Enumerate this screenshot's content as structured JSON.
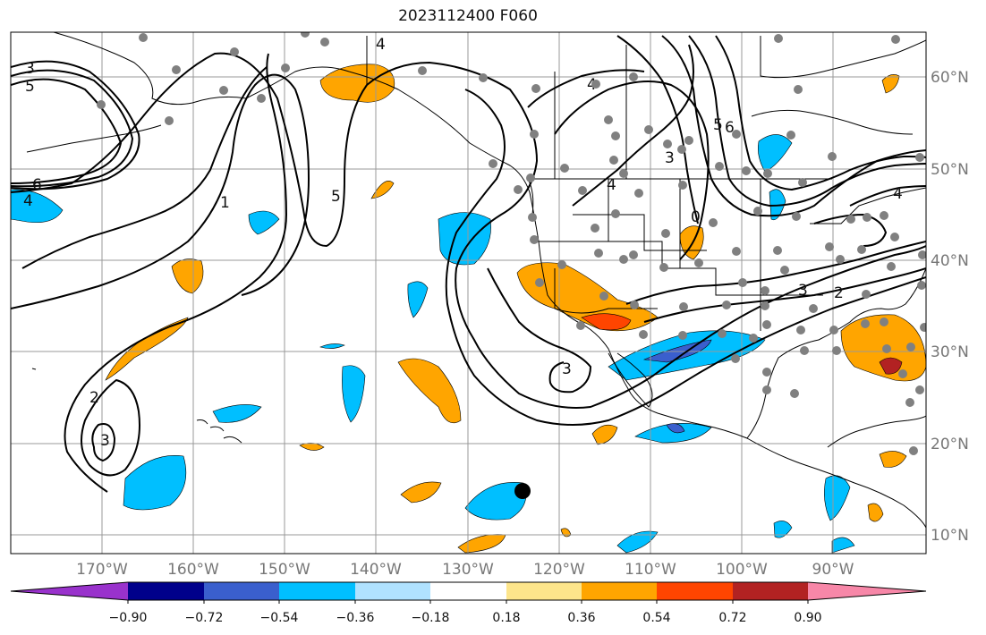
{
  "title": "2023112400 F060",
  "map": {
    "lon_labels": [
      "170°W",
      "160°W",
      "150°W",
      "140°W",
      "130°W",
      "120°W",
      "110°W",
      "100°W",
      "90°W"
    ],
    "lat_labels": [
      "60°N",
      "50°N",
      "40°N",
      "30°N",
      "20°N",
      "10°N"
    ],
    "contour_labels": [
      "3",
      "5",
      "6",
      "4",
      "1",
      "5",
      "4",
      "2",
      "3",
      "4",
      "3",
      "5",
      "6",
      "4",
      "3",
      "2",
      "3",
      "4",
      "0"
    ]
  },
  "colorbar": {
    "colors": [
      "#9932cc",
      "#00008b",
      "#3a5fcd",
      "#00bfff",
      "#b0e2ff",
      "#ffffff",
      "#fde58b",
      "#ffa500",
      "#ff4500",
      "#b22222",
      "#f787a8"
    ],
    "tick_labels": [
      "−0.90",
      "−0.72",
      "−0.54",
      "−0.36",
      "−0.18",
      "0.18",
      "0.36",
      "0.54",
      "0.72",
      "0.90"
    ]
  },
  "colors": {
    "positive_fill": "#ffa500",
    "negative_fill": "#00bfff",
    "station_dot": "#808080",
    "marker": "#000000"
  }
}
